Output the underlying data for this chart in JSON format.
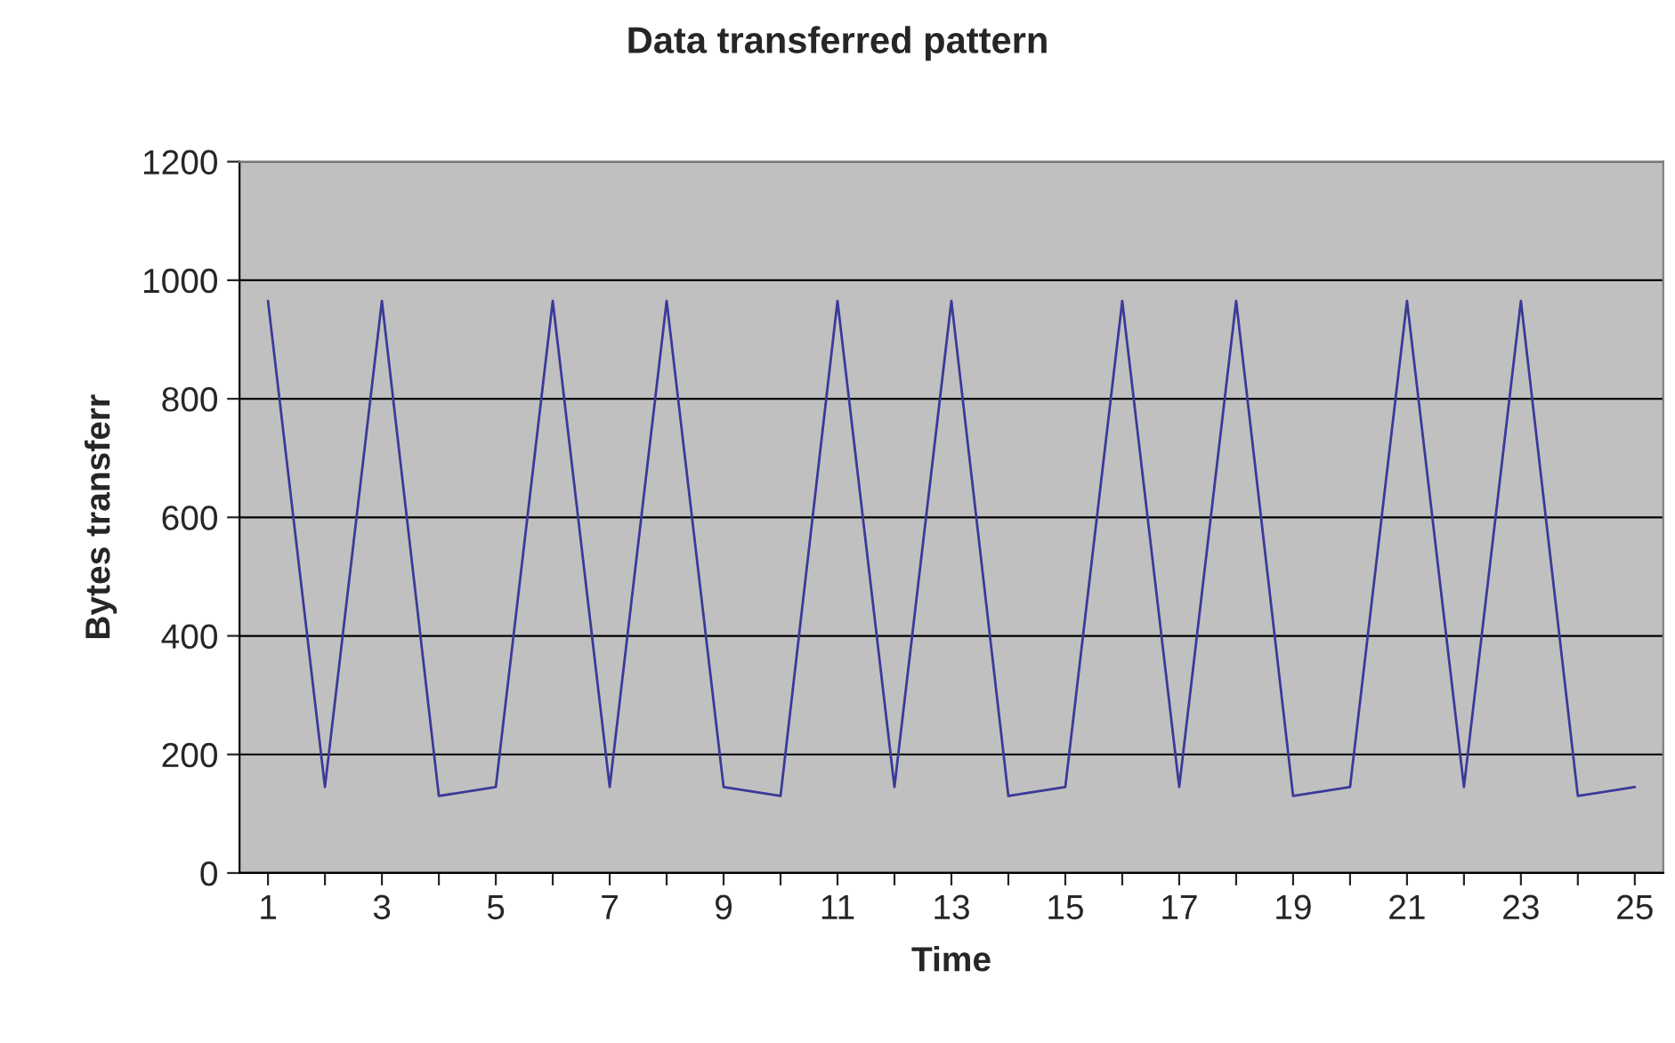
{
  "chart_data": {
    "type": "line",
    "title": "Data transferred pattern",
    "xlabel": "Time",
    "ylabel": "Bytes transferr",
    "categories": [
      "1",
      null,
      "3",
      null,
      "5",
      null,
      "7",
      null,
      "9",
      null,
      "11",
      null,
      "13",
      null,
      "15",
      null,
      "17",
      null,
      "19",
      null,
      "21",
      null,
      "23",
      null,
      "25"
    ],
    "series": [
      {
        "color": "#3a3a99",
        "values": [
          965,
          145,
          965,
          130,
          145,
          965,
          145,
          965,
          145,
          130,
          965,
          145,
          965,
          130,
          145,
          965,
          145,
          965,
          130,
          145,
          965,
          145,
          965,
          130,
          145
        ]
      }
    ],
    "ylim": [
      0,
      1200
    ],
    "yticks": [
      0,
      200,
      400,
      600,
      800,
      1000,
      1200
    ],
    "grid": "y",
    "marker": "none",
    "line_style": "solid"
  }
}
